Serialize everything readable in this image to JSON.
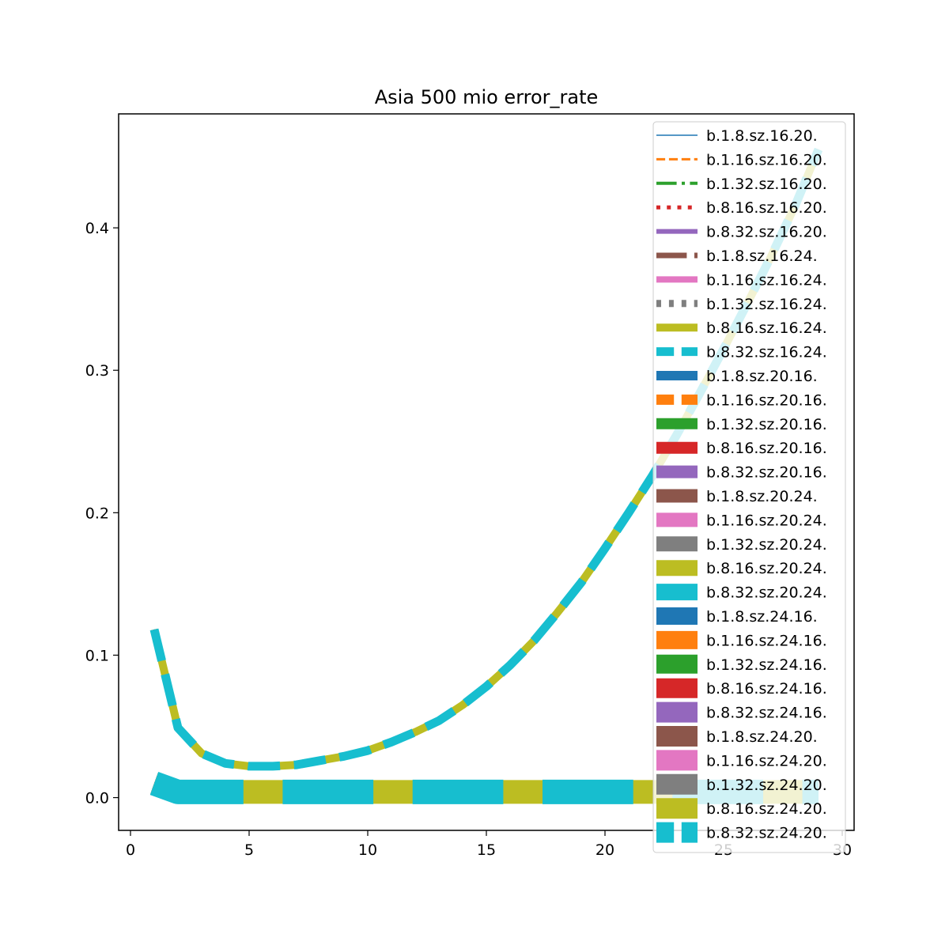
{
  "chart_data": {
    "type": "line",
    "title": "Asia 500 mio error_rate",
    "xlabel": "",
    "ylabel": "",
    "xlim": [
      -0.5,
      30.5
    ],
    "ylim": [
      -0.023,
      0.48
    ],
    "xticks": [
      0,
      5,
      10,
      15,
      20,
      25,
      30
    ],
    "yticks": [
      0.0,
      0.1,
      0.2,
      0.3,
      0.4
    ],
    "grid": false,
    "legend_position": "top-right",
    "x": [
      1,
      2,
      3,
      4,
      5,
      6,
      7,
      8,
      9,
      10,
      11,
      12,
      13,
      14,
      15,
      16,
      17,
      18,
      19,
      20,
      21,
      22,
      23,
      24,
      25,
      26,
      27,
      28,
      29
    ],
    "upper_curve": [
      0.118,
      0.049,
      0.031,
      0.024,
      0.022,
      0.022,
      0.023,
      0.026,
      0.029,
      0.033,
      0.039,
      0.046,
      0.054,
      0.065,
      0.078,
      0.093,
      0.11,
      0.13,
      0.151,
      0.175,
      0.2,
      0.226,
      0.254,
      0.284,
      0.315,
      0.347,
      0.38,
      0.415,
      0.455
    ],
    "lower_curve": [
      0.01,
      0.004,
      0.004,
      0.004,
      0.004,
      0.004,
      0.004,
      0.004,
      0.004,
      0.004,
      0.004,
      0.004,
      0.004,
      0.004,
      0.004,
      0.004,
      0.004,
      0.004,
      0.004,
      0.004,
      0.004,
      0.004,
      0.004,
      0.004,
      0.004,
      0.004,
      0.004,
      0.004,
      0.004
    ],
    "series": [
      {
        "name": "b.1.8.sz.16.20.",
        "color": "#1f77b4",
        "curve": "upper",
        "style": "solid",
        "width": 1.5
      },
      {
        "name": "b.1.16.sz.16.20.",
        "color": "#ff7f0e",
        "curve": "upper",
        "style": "dashed",
        "width": 3
      },
      {
        "name": "b.1.32.sz.16.20.",
        "color": "#2ca02c",
        "curve": "upper",
        "style": "dashdot",
        "width": 4
      },
      {
        "name": "b.8.16.sz.16.20.",
        "color": "#d62728",
        "curve": "upper",
        "style": "dotted",
        "width": 5
      },
      {
        "name": "b.8.32.sz.16.20.",
        "color": "#9467bd",
        "curve": "upper",
        "style": "solid",
        "width": 6
      },
      {
        "name": "b.1.8.sz.16.24.",
        "color": "#8c564b",
        "curve": "lower",
        "style": "dashdot",
        "width": 7
      },
      {
        "name": "b.1.16.sz.16.24.",
        "color": "#e377c2",
        "curve": "lower",
        "style": "solid",
        "width": 8
      },
      {
        "name": "b.1.32.sz.16.24.",
        "color": "#7f7f7f",
        "curve": "upper",
        "style": "dotted",
        "width": 9
      },
      {
        "name": "b.8.16.sz.16.24.",
        "color": "#bcbd22",
        "curve": "upper",
        "style": "solid",
        "width": 10
      },
      {
        "name": "b.8.32.sz.16.24.",
        "color": "#17becf",
        "curve": "upper",
        "style": "dashed",
        "width": 11
      },
      {
        "name": "b.1.8.sz.20.16.",
        "color": "#1f77b4",
        "curve": "lower",
        "style": "solid",
        "width": 12
      },
      {
        "name": "b.1.16.sz.20.16.",
        "color": "#ff7f0e",
        "curve": "lower",
        "style": "dashed",
        "width": 13
      },
      {
        "name": "b.1.32.sz.20.16.",
        "color": "#2ca02c",
        "curve": "lower",
        "style": "solid",
        "width": 14
      },
      {
        "name": "b.8.16.sz.20.16.",
        "color": "#d62728",
        "curve": "lower",
        "style": "solid",
        "width": 15
      },
      {
        "name": "b.8.32.sz.20.16.",
        "color": "#9467bd",
        "curve": "lower",
        "style": "solid",
        "width": 16
      },
      {
        "name": "b.1.8.sz.20.24.",
        "color": "#8c564b",
        "curve": "lower",
        "style": "solid",
        "width": 17
      },
      {
        "name": "b.1.16.sz.20.24.",
        "color": "#e377c2",
        "curve": "lower",
        "style": "solid",
        "width": 18
      },
      {
        "name": "b.1.32.sz.20.24.",
        "color": "#7f7f7f",
        "curve": "lower",
        "style": "solid",
        "width": 19
      },
      {
        "name": "b.8.16.sz.20.24.",
        "color": "#bcbd22",
        "curve": "lower",
        "style": "solid",
        "width": 20
      },
      {
        "name": "b.8.32.sz.20.24.",
        "color": "#17becf",
        "curve": "lower",
        "style": "solid",
        "width": 21
      },
      {
        "name": "b.1.8.sz.24.16.",
        "color": "#1f77b4",
        "curve": "lower",
        "style": "solid",
        "width": 22
      },
      {
        "name": "b.1.16.sz.24.16.",
        "color": "#ff7f0e",
        "curve": "lower",
        "style": "solid",
        "width": 23
      },
      {
        "name": "b.1.32.sz.24.16.",
        "color": "#2ca02c",
        "curve": "lower",
        "style": "solid",
        "width": 24
      },
      {
        "name": "b.8.16.sz.24.16.",
        "color": "#d62728",
        "curve": "lower",
        "style": "solid",
        "width": 25
      },
      {
        "name": "b.8.32.sz.24.16.",
        "color": "#9467bd",
        "curve": "lower",
        "style": "solid",
        "width": 26
      },
      {
        "name": "b.1.8.sz.24.20.",
        "color": "#8c564b",
        "curve": "lower",
        "style": "solid",
        "width": 27
      },
      {
        "name": "b.1.16.sz.24.20.",
        "color": "#e377c2",
        "curve": "lower",
        "style": "solid",
        "width": 28
      },
      {
        "name": "b.1.32.sz.24.20.",
        "color": "#7f7f7f",
        "curve": "lower",
        "style": "solid",
        "width": 29
      },
      {
        "name": "b.8.16.sz.24.20.",
        "color": "#bcbd22",
        "curve": "lower",
        "style": "solid",
        "width": 30
      },
      {
        "name": "b.8.32.sz.24.20.",
        "color": "#17becf",
        "curve": "lower",
        "style": "dashed",
        "width": 31
      }
    ]
  }
}
